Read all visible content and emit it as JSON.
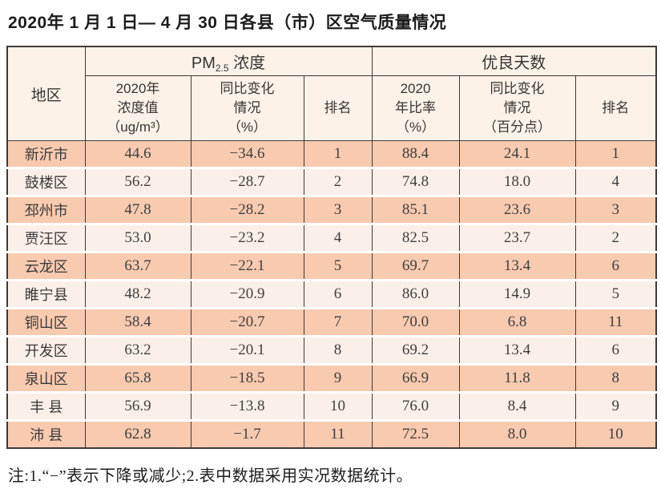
{
  "page_title": "2020年 1 月 1 日— 4 月 30 日各县（市）区空气质量情况",
  "table": {
    "group_headers": {
      "region": "地区",
      "pm25_prefix": "PM",
      "pm25_sub": "2.5",
      "pm25_suffix": " 浓度",
      "good_days": "优良天数"
    },
    "sub_headers": {
      "pm_value": "2020年\n浓度值\n（ug/m³）",
      "pm_change": "同比变化\n情况\n（%）",
      "pm_rank": "排名",
      "good_ratio": "2020\n年比率\n（%）",
      "good_change": "同比变化\n情况\n（百分点）",
      "good_rank": "排名"
    },
    "rows": [
      {
        "region": "新沂市",
        "pm_value": "44.6",
        "pm_change": "−34.6",
        "pm_rank": "1",
        "good_ratio": "88.4",
        "good_change": "24.1",
        "good_rank": "1"
      },
      {
        "region": "鼓楼区",
        "pm_value": "56.2",
        "pm_change": "−28.7",
        "pm_rank": "2",
        "good_ratio": "74.8",
        "good_change": "18.0",
        "good_rank": "4"
      },
      {
        "region": "邳州市",
        "pm_value": "47.8",
        "pm_change": "−28.2",
        "pm_rank": "3",
        "good_ratio": "85.1",
        "good_change": "23.6",
        "good_rank": "3"
      },
      {
        "region": "贾汪区",
        "pm_value": "53.0",
        "pm_change": "−23.2",
        "pm_rank": "4",
        "good_ratio": "82.5",
        "good_change": "23.7",
        "good_rank": "2"
      },
      {
        "region": "云龙区",
        "pm_value": "63.7",
        "pm_change": "−22.1",
        "pm_rank": "5",
        "good_ratio": "69.7",
        "good_change": "13.4",
        "good_rank": "6"
      },
      {
        "region": "睢宁县",
        "pm_value": "48.2",
        "pm_change": "−20.9",
        "pm_rank": "6",
        "good_ratio": "86.0",
        "good_change": "14.9",
        "good_rank": "5"
      },
      {
        "region": "铜山区",
        "pm_value": "58.4",
        "pm_change": "−20.7",
        "pm_rank": "7",
        "good_ratio": "70.0",
        "good_change": "6.8",
        "good_rank": "11"
      },
      {
        "region": "开发区",
        "pm_value": "63.2",
        "pm_change": "−20.1",
        "pm_rank": "8",
        "good_ratio": "69.2",
        "good_change": "13.4",
        "good_rank": "6"
      },
      {
        "region": "泉山区",
        "pm_value": "65.8",
        "pm_change": "−18.5",
        "pm_rank": "9",
        "good_ratio": "66.9",
        "good_change": "11.8",
        "good_rank": "8"
      },
      {
        "region": "丰 县",
        "pm_value": "56.9",
        "pm_change": "−13.8",
        "pm_rank": "10",
        "good_ratio": "76.0",
        "good_change": "8.4",
        "good_rank": "9"
      },
      {
        "region": "沛 县",
        "pm_value": "62.8",
        "pm_change": "−1.7",
        "pm_rank": "11",
        "good_ratio": "72.5",
        "good_change": "8.0",
        "good_rank": "10"
      }
    ]
  },
  "footnote": "注:1.“−”表示下降或减少;2.表中数据采用实况数据统计。",
  "colors": {
    "row_salmon": "#f8cab0",
    "row_light": "#fbf0e9",
    "header_bg": "#fdf2e8",
    "border": "#3e3a38",
    "text": "#3f3f3f"
  }
}
